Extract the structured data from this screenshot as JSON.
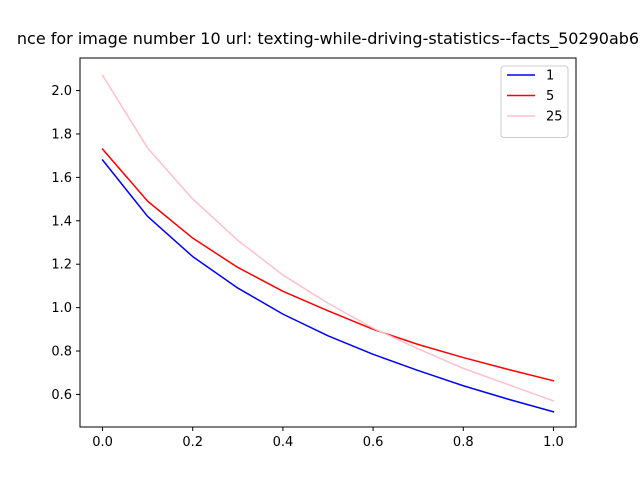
{
  "chart_data": {
    "type": "line",
    "title": "nce for image number 10 url: texting-while-driving-statistics--facts_50290ab6",
    "xlabel": "",
    "ylabel": "",
    "xlim": [
      -0.05,
      1.05
    ],
    "ylim": [
      0.45,
      2.15
    ],
    "xticks": [
      0.0,
      0.2,
      0.4,
      0.6,
      0.8,
      1.0
    ],
    "xtick_labels": [
      "0.0",
      "0.2",
      "0.4",
      "0.6",
      "0.8",
      "1.0"
    ],
    "yticks": [
      0.6,
      0.8,
      1.0,
      1.2,
      1.4,
      1.6,
      1.8,
      2.0
    ],
    "ytick_labels": [
      "0.6",
      "0.8",
      "1.0",
      "1.2",
      "1.4",
      "1.6",
      "1.8",
      "2.0"
    ],
    "grid": false,
    "legend_position": "top-right",
    "x": [
      0.0,
      0.1,
      0.2,
      0.3,
      0.4,
      0.5,
      0.6,
      0.7,
      0.8,
      0.9,
      1.0
    ],
    "series": [
      {
        "name": "1",
        "color": "#0000ff",
        "values": [
          1.68,
          1.42,
          1.235,
          1.09,
          0.97,
          0.87,
          0.785,
          0.71,
          0.64,
          0.578,
          0.52
        ]
      },
      {
        "name": "5",
        "color": "#ff0000",
        "values": [
          1.73,
          1.49,
          1.32,
          1.185,
          1.075,
          0.985,
          0.9,
          0.83,
          0.77,
          0.715,
          0.663
        ]
      },
      {
        "name": "25",
        "color": "#ffc0cb",
        "values": [
          2.07,
          1.735,
          1.5,
          1.31,
          1.15,
          1.02,
          0.905,
          0.81,
          0.72,
          0.645,
          0.57
        ]
      }
    ]
  }
}
